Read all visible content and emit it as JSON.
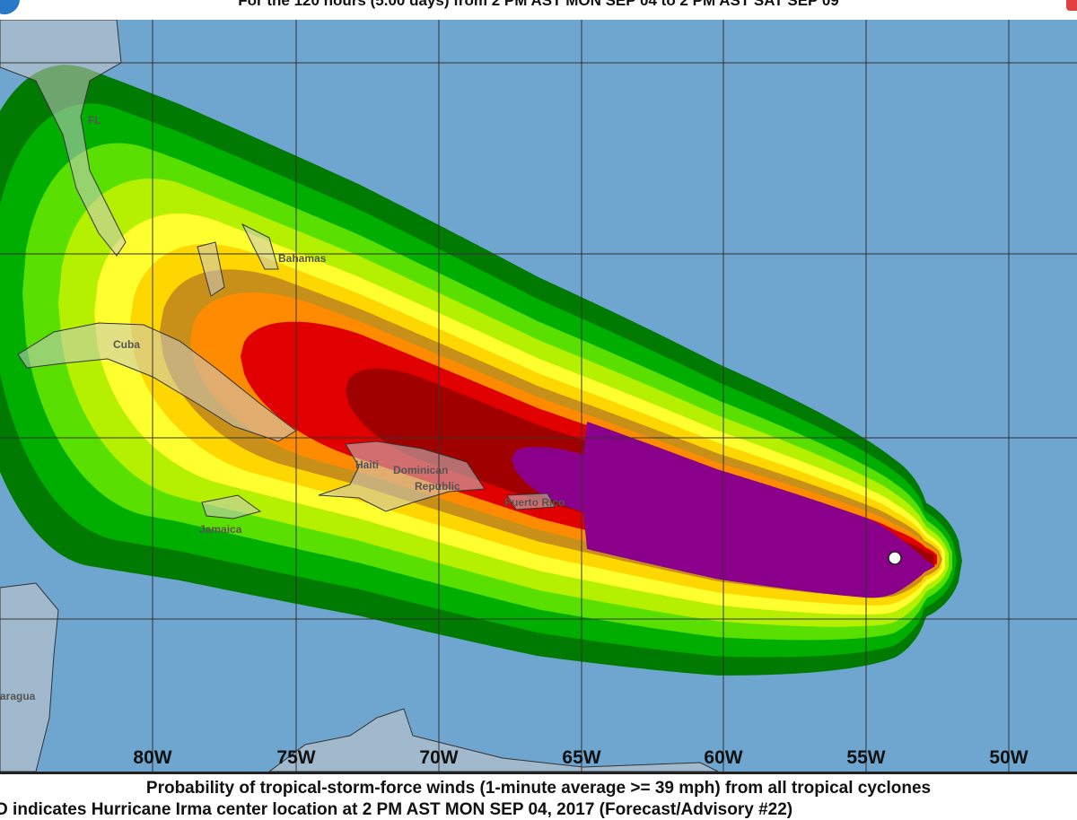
{
  "header": {
    "subtitle": "For the 120 hours (5.00 days) from 2 PM AST MON SEP 04 to 2 PM AST SAT SEP 09"
  },
  "map": {
    "ocean_color": "#6fa6d0",
    "land_color": "#c9c9c9",
    "longitude_labels": [
      "80W",
      "75W",
      "70W",
      "65W",
      "60W",
      "55W",
      "50W"
    ],
    "places": {
      "fl": "FL",
      "bahamas": "Bahamas",
      "cuba": "Cuba",
      "haiti": "Haiti",
      "dominican": "Dominican",
      "republic": "Republic",
      "puerto_rico": "Puerto Rico",
      "jamaica": "Jamaica",
      "nicaragua": "aragua"
    },
    "probability_band_colors": [
      "#007a00",
      "#00ae00",
      "#5ae000",
      "#b4f000",
      "#ffff30",
      "#ffd700",
      "#c89018",
      "#ff8c00",
      "#e00000",
      "#a00000",
      "#8b008b"
    ],
    "storm_marker": "hurricane-center-circle"
  },
  "footer": {
    "line1": "Probability of tropical-storm-force winds (1-minute average >= 39 mph) from all tropical cyclones",
    "line2": "O indicates Hurricane Irma center location at 2 PM AST MON SEP 04, 2017 (Forecast/Advisory #22)"
  }
}
